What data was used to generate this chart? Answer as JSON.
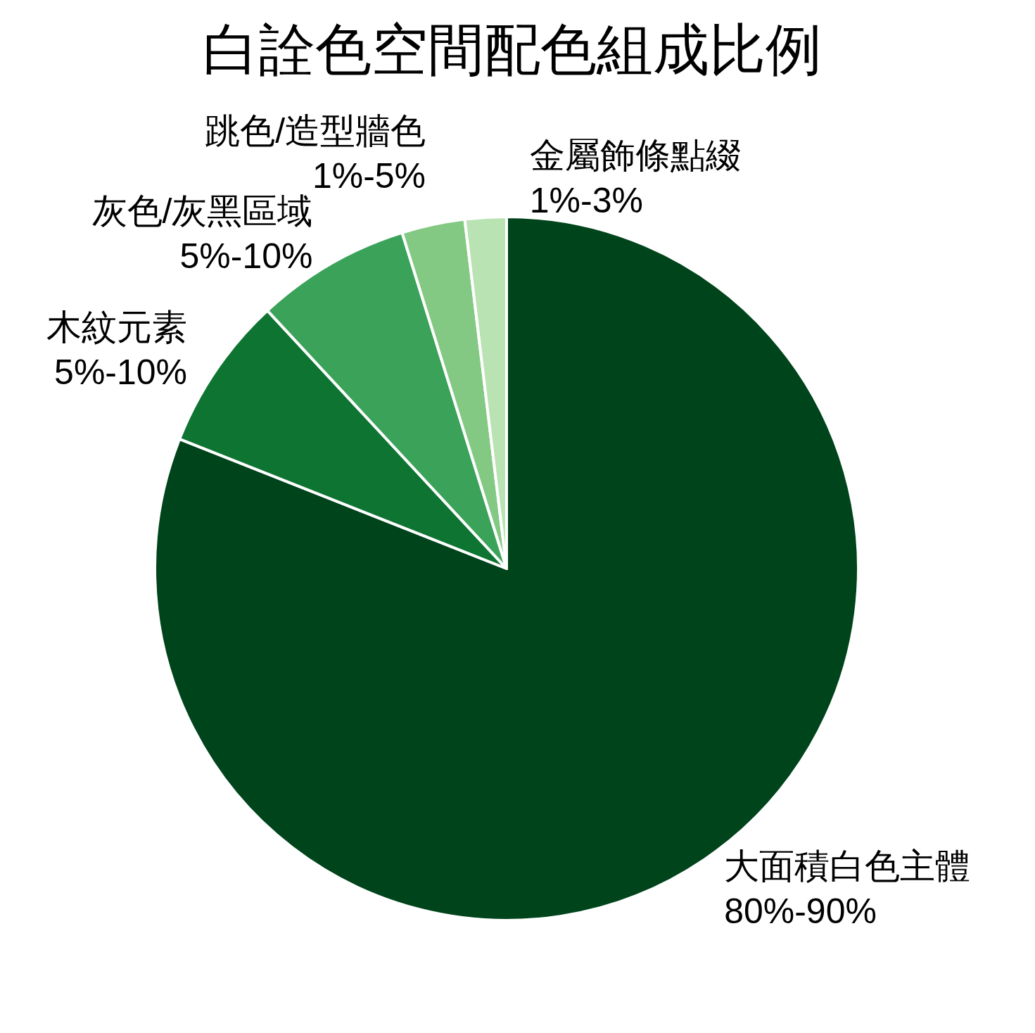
{
  "chart_data": {
    "type": "pie",
    "title": "白詮色空間配色組成比例",
    "categories": [
      "大面積白色主體\n80%-90%",
      "木紋元素\n5%-10%",
      "灰色/灰黑區域\n5%-10%",
      "跳色/造型牆色\n1%-5%",
      "金屬飾條點綴\n1%-3%"
    ],
    "values": [
      81.0,
      7.1,
      7.1,
      2.9,
      1.9
    ],
    "colors": [
      "#00441b",
      "#0e7432",
      "#3ba259",
      "#83c984",
      "#b9e3b3"
    ]
  }
}
